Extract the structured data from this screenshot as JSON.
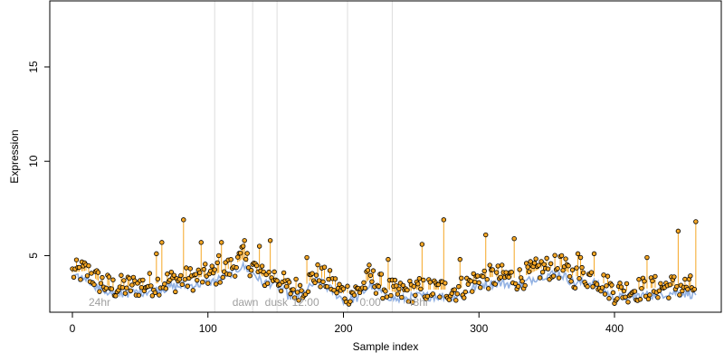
{
  "chart_data": {
    "type": "scatter",
    "title": "",
    "xlabel": "Sample index",
    "ylabel": "Expression",
    "xlim": [
      0,
      480
    ],
    "ylim": [
      2.0,
      18.5
    ],
    "x_ticks": [
      0,
      100,
      200,
      300,
      400
    ],
    "y_ticks": [
      5,
      10,
      15
    ],
    "grid": false,
    "region_boundaries": [
      105,
      133,
      151,
      203,
      236
    ],
    "region_labels": [
      {
        "text": "24hr",
        "x": 12
      },
      {
        "text": "dawn",
        "x": 118
      },
      {
        "text": "dusk",
        "x": 142
      },
      {
        "text": "12:00",
        "x": 162
      },
      {
        "text": "0:00",
        "x": 212
      },
      {
        "text": "48hr",
        "x": 247
      }
    ],
    "colors": {
      "points_fill": "#f5a623",
      "points_stroke": "#000000",
      "spike_lines": "#f5a623",
      "baseline": "#6f98d9",
      "region_lines": "#dddddd",
      "region_text": "#a0a0a0"
    },
    "n_points": 461,
    "spikes": [
      {
        "x": 62,
        "y": 5.1
      },
      {
        "x": 66,
        "y": 5.7
      },
      {
        "x": 82,
        "y": 6.9
      },
      {
        "x": 95,
        "y": 5.7
      },
      {
        "x": 108,
        "y": 5.0
      },
      {
        "x": 110,
        "y": 5.7
      },
      {
        "x": 126,
        "y": 5.5
      },
      {
        "x": 127,
        "y": 5.8
      },
      {
        "x": 138,
        "y": 5.5
      },
      {
        "x": 146,
        "y": 5.8
      },
      {
        "x": 173,
        "y": 4.9
      },
      {
        "x": 219,
        "y": 4.5
      },
      {
        "x": 233,
        "y": 4.8
      },
      {
        "x": 258,
        "y": 5.6
      },
      {
        "x": 274,
        "y": 6.9
      },
      {
        "x": 286,
        "y": 4.8
      },
      {
        "x": 305,
        "y": 6.1
      },
      {
        "x": 326,
        "y": 5.9
      },
      {
        "x": 361,
        "y": 5.0
      },
      {
        "x": 373,
        "y": 5.1
      },
      {
        "x": 375,
        "y": 4.9
      },
      {
        "x": 385,
        "y": 5.1
      },
      {
        "x": 424,
        "y": 4.9
      },
      {
        "x": 447,
        "y": 6.3
      },
      {
        "x": 460,
        "y": 6.8
      }
    ],
    "trend": [
      {
        "x": 0,
        "y": 4.1
      },
      {
        "x": 10,
        "y": 4.2
      },
      {
        "x": 20,
        "y": 3.6
      },
      {
        "x": 30,
        "y": 3.3
      },
      {
        "x": 45,
        "y": 3.4
      },
      {
        "x": 60,
        "y": 3.5
      },
      {
        "x": 75,
        "y": 3.7
      },
      {
        "x": 90,
        "y": 3.8
      },
      {
        "x": 105,
        "y": 4.0
      },
      {
        "x": 115,
        "y": 4.3
      },
      {
        "x": 125,
        "y": 4.8
      },
      {
        "x": 133,
        "y": 4.5
      },
      {
        "x": 140,
        "y": 3.9
      },
      {
        "x": 150,
        "y": 3.9
      },
      {
        "x": 160,
        "y": 3.2
      },
      {
        "x": 170,
        "y": 3.3
      },
      {
        "x": 180,
        "y": 4.0
      },
      {
        "x": 190,
        "y": 3.6
      },
      {
        "x": 200,
        "y": 3.0
      },
      {
        "x": 210,
        "y": 3.1
      },
      {
        "x": 220,
        "y": 3.8
      },
      {
        "x": 230,
        "y": 3.3
      },
      {
        "x": 240,
        "y": 3.0
      },
      {
        "x": 255,
        "y": 3.2
      },
      {
        "x": 270,
        "y": 3.2
      },
      {
        "x": 285,
        "y": 3.2
      },
      {
        "x": 300,
        "y": 3.8
      },
      {
        "x": 315,
        "y": 3.9
      },
      {
        "x": 330,
        "y": 3.8
      },
      {
        "x": 345,
        "y": 4.3
      },
      {
        "x": 360,
        "y": 4.4
      },
      {
        "x": 370,
        "y": 3.9
      },
      {
        "x": 385,
        "y": 3.9
      },
      {
        "x": 400,
        "y": 3.1
      },
      {
        "x": 415,
        "y": 3.2
      },
      {
        "x": 430,
        "y": 3.3
      },
      {
        "x": 445,
        "y": 3.4
      },
      {
        "x": 460,
        "y": 3.3
      }
    ]
  }
}
